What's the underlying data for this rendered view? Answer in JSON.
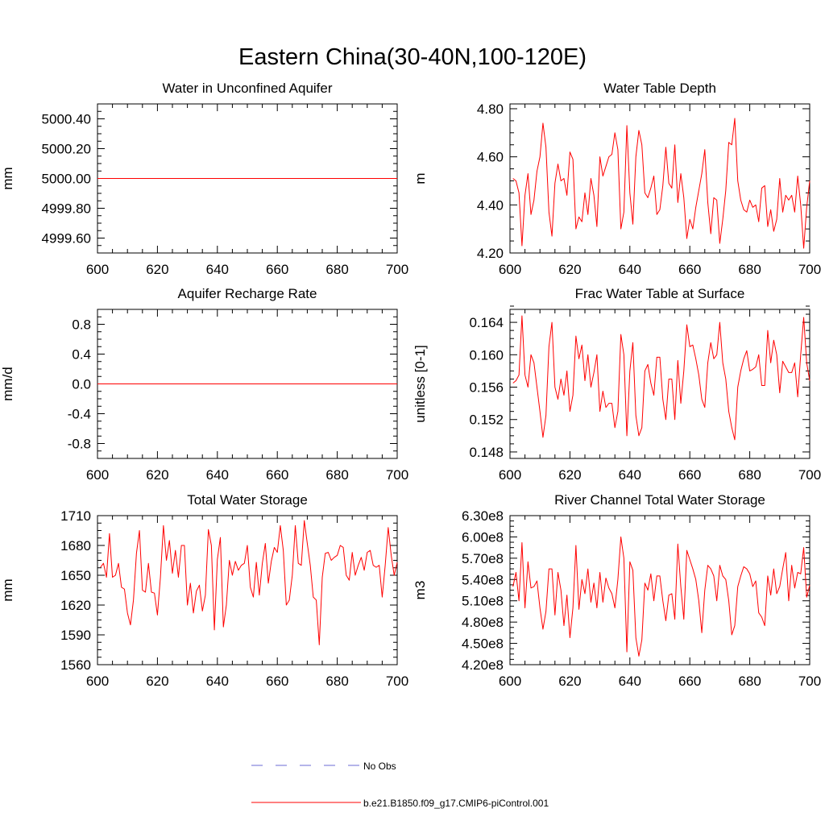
{
  "title": "Eastern China(30-40N,100-120E)",
  "legend": {
    "obs_label": "No Obs",
    "model_label": "b.e21.B1850.f09_g17.CMIP6-piControl.001",
    "colors": {
      "obs": "#6b6bd6",
      "model": "#ff0000"
    }
  },
  "chart_data": [
    {
      "type": "line",
      "title": "Water in Unconfined Aquifer",
      "xlabel": "",
      "ylabel": "mm",
      "xlim": [
        600,
        700
      ],
      "ylim": [
        4999.5,
        5000.5
      ],
      "xticks": [
        600,
        620,
        640,
        660,
        680,
        700
      ],
      "xtick_labels": [
        "600",
        "620",
        "640",
        "660",
        "680",
        "700"
      ],
      "yticks": [
        4999.6,
        4999.8,
        5000.0,
        5000.2,
        5000.4
      ],
      "ytick_labels": [
        "4999.60",
        "4999.80",
        "5000.00",
        "5000.20",
        "5000.40"
      ],
      "x_start": 601,
      "x_step": 1,
      "series": [
        {
          "name": "b.e21.B1850.f09_g17.CMIP6-piControl.001",
          "constant": 5000.0
        }
      ]
    },
    {
      "type": "line",
      "title": "Water Table Depth",
      "xlabel": "",
      "ylabel": "m",
      "xlim": [
        600,
        700
      ],
      "ylim": [
        4.2,
        4.82
      ],
      "xticks": [
        600,
        620,
        640,
        660,
        680,
        700
      ],
      "xtick_labels": [
        "600",
        "620",
        "640",
        "660",
        "680",
        "700"
      ],
      "yticks": [
        4.2,
        4.4,
        4.6,
        4.8
      ],
      "ytick_labels": [
        "4.20",
        "4.40",
        "4.60",
        "4.80"
      ],
      "x_start": 601,
      "x_step": 1,
      "series": [
        {
          "name": "b.e21.B1850.f09_g17.CMIP6-piControl.001",
          "values": [
            4.51,
            4.5,
            4.45,
            4.23,
            4.44,
            4.53,
            4.36,
            4.42,
            4.54,
            4.6,
            4.74,
            4.64,
            4.37,
            4.27,
            4.49,
            4.57,
            4.5,
            4.51,
            4.44,
            4.62,
            4.59,
            4.3,
            4.35,
            4.33,
            4.45,
            4.36,
            4.51,
            4.44,
            4.31,
            4.6,
            4.52,
            4.56,
            4.6,
            4.61,
            4.7,
            4.63,
            4.3,
            4.37,
            4.73,
            4.45,
            4.32,
            4.6,
            4.71,
            4.65,
            4.45,
            4.43,
            4.47,
            4.52,
            4.36,
            4.38,
            4.48,
            4.64,
            4.49,
            4.47,
            4.65,
            4.41,
            4.53,
            4.43,
            4.26,
            4.34,
            4.3,
            4.39,
            4.46,
            4.53,
            4.63,
            4.41,
            4.28,
            4.43,
            4.42,
            4.24,
            4.34,
            4.46,
            4.66,
            4.65,
            4.76,
            4.5,
            4.42,
            4.38,
            4.37,
            4.42,
            4.39,
            4.4,
            4.33,
            4.47,
            4.48,
            4.31,
            4.38,
            4.29,
            4.34,
            4.51,
            4.37,
            4.44,
            4.42,
            4.44,
            4.37,
            4.52,
            4.4,
            4.22,
            4.39,
            4.5
          ]
        }
      ]
    },
    {
      "type": "line",
      "title": "Aquifer Recharge Rate",
      "xlabel": "",
      "ylabel": "mm/d",
      "xlim": [
        600,
        700
      ],
      "ylim": [
        -1.0,
        1.0
      ],
      "xticks": [
        600,
        620,
        640,
        660,
        680,
        700
      ],
      "xtick_labels": [
        "600",
        "620",
        "640",
        "660",
        "680",
        "700"
      ],
      "yticks": [
        -0.8,
        -0.4,
        0.0,
        0.4,
        0.8
      ],
      "ytick_labels": [
        "-0.8",
        "-0.4",
        "0.0",
        "0.4",
        "0.8"
      ],
      "x_start": 601,
      "x_step": 1,
      "series": [
        {
          "name": "b.e21.B1850.f09_g17.CMIP6-piControl.001",
          "constant": 0.0
        }
      ]
    },
    {
      "type": "line",
      "title": "Frac Water Table at Surface",
      "xlabel": "",
      "ylabel": "unitless [0-1]",
      "xlim": [
        600,
        700
      ],
      "ylim": [
        0.1472,
        0.1656
      ],
      "xticks": [
        600,
        620,
        640,
        660,
        680,
        700
      ],
      "xtick_labels": [
        "600",
        "620",
        "640",
        "660",
        "680",
        "700"
      ],
      "yticks": [
        0.148,
        0.152,
        0.156,
        0.16,
        0.164
      ],
      "ytick_labels": [
        "0.148",
        "0.152",
        "0.156",
        "0.160",
        "0.164"
      ],
      "x_start": 601,
      "x_step": 1,
      "series": [
        {
          "name": "b.e21.B1850.f09_g17.CMIP6-piControl.001",
          "values": [
            0.1565,
            0.1568,
            0.1575,
            0.1648,
            0.1575,
            0.156,
            0.16,
            0.159,
            0.156,
            0.153,
            0.1498,
            0.1525,
            0.161,
            0.164,
            0.156,
            0.1545,
            0.157,
            0.155,
            0.158,
            0.153,
            0.155,
            0.1623,
            0.1595,
            0.1612,
            0.1568,
            0.16,
            0.156,
            0.1578,
            0.16,
            0.153,
            0.1555,
            0.1535,
            0.154,
            0.154,
            0.151,
            0.153,
            0.1625,
            0.16,
            0.15,
            0.158,
            0.1615,
            0.1525,
            0.15,
            0.151,
            0.158,
            0.1588,
            0.1565,
            0.155,
            0.1597,
            0.1597,
            0.1545,
            0.152,
            0.157,
            0.157,
            0.152,
            0.1593,
            0.154,
            0.158,
            0.1637,
            0.161,
            0.1612,
            0.1595,
            0.1575,
            0.1545,
            0.1535,
            0.159,
            0.1615,
            0.1595,
            0.16,
            0.164,
            0.159,
            0.157,
            0.153,
            0.151,
            0.1495,
            0.156,
            0.158,
            0.1595,
            0.1605,
            0.158,
            0.1582,
            0.1585,
            0.16,
            0.1562,
            0.1562,
            0.163,
            0.159,
            0.1618,
            0.16,
            0.1553,
            0.1592,
            0.1585,
            0.1578,
            0.1578,
            0.159,
            0.1548,
            0.16,
            0.1646,
            0.159,
            0.1568
          ]
        }
      ]
    },
    {
      "type": "line",
      "title": "Total Water Storage",
      "xlabel": "",
      "ylabel": "mm",
      "xlim": [
        600,
        700
      ],
      "ylim": [
        1560,
        1710
      ],
      "xticks": [
        600,
        620,
        640,
        660,
        680,
        700
      ],
      "xtick_labels": [
        "600",
        "620",
        "640",
        "660",
        "680",
        "700"
      ],
      "yticks": [
        1560,
        1590,
        1620,
        1650,
        1680,
        1710
      ],
      "ytick_labels": [
        "1560",
        "1590",
        "1620",
        "1650",
        "1680",
        "1710"
      ],
      "x_start": 601,
      "x_step": 1,
      "series": [
        {
          "name": "b.e21.B1850.f09_g17.CMIP6-piControl.001",
          "values": [
            1658,
            1662,
            1648,
            1692,
            1648,
            1650,
            1662,
            1638,
            1636,
            1612,
            1600,
            1625,
            1672,
            1695,
            1635,
            1633,
            1662,
            1633,
            1632,
            1610,
            1648,
            1700,
            1665,
            1685,
            1652,
            1675,
            1648,
            1680,
            1680,
            1620,
            1642,
            1612,
            1634,
            1640,
            1614,
            1630,
            1696,
            1680,
            1595,
            1666,
            1688,
            1598,
            1620,
            1665,
            1650,
            1664,
            1655,
            1660,
            1662,
            1680,
            1638,
            1628,
            1663,
            1630,
            1662,
            1682,
            1642,
            1664,
            1678,
            1673,
            1700,
            1675,
            1620,
            1625,
            1650,
            1700,
            1662,
            1660,
            1705,
            1682,
            1660,
            1628,
            1625,
            1580,
            1648,
            1672,
            1673,
            1665,
            1668,
            1670,
            1680,
            1678,
            1650,
            1645,
            1673,
            1650,
            1660,
            1668,
            1655,
            1673,
            1675,
            1660,
            1658,
            1660,
            1628,
            1660,
            1698,
            1670,
            1650,
            1663
          ]
        }
      ]
    },
    {
      "type": "line",
      "title": "River Channel Total Water Storage",
      "xlabel": "",
      "ylabel": "m3",
      "xlim": [
        600,
        700
      ],
      "ylim": [
        420000000,
        630000000
      ],
      "xticks": [
        600,
        620,
        640,
        660,
        680,
        700
      ],
      "xtick_labels": [
        "600",
        "620",
        "640",
        "660",
        "680",
        "700"
      ],
      "yticks": [
        420000000,
        450000000,
        480000000,
        510000000,
        540000000,
        570000000,
        600000000,
        630000000
      ],
      "ytick_labels": [
        "4.20e8",
        "4.50e8",
        "4.80e8",
        "5.10e8",
        "5.40e8",
        "5.70e8",
        "6.00e8",
        "6.30e8"
      ],
      "x_start": 601,
      "x_step": 1,
      "series": [
        {
          "name": "b.e21.B1850.f09_g17.CMIP6-piControl.001",
          "values": [
            530000000,
            550000000,
            510000000,
            592000000,
            500000000,
            565000000,
            528000000,
            530000000,
            538000000,
            500000000,
            470000000,
            495000000,
            555000000,
            555000000,
            490000000,
            550000000,
            525000000,
            475000000,
            518000000,
            458000000,
            500000000,
            588000000,
            498000000,
            540000000,
            520000000,
            555000000,
            508000000,
            535000000,
            500000000,
            550000000,
            508000000,
            542000000,
            528000000,
            520000000,
            500000000,
            540000000,
            600000000,
            570000000,
            438000000,
            565000000,
            553000000,
            458000000,
            432000000,
            455000000,
            535000000,
            525000000,
            548000000,
            510000000,
            545000000,
            545000000,
            510000000,
            482000000,
            518000000,
            520000000,
            484000000,
            590000000,
            530000000,
            484000000,
            581000000,
            568000000,
            555000000,
            540000000,
            510000000,
            465000000,
            525000000,
            560000000,
            555000000,
            545000000,
            510000000,
            560000000,
            545000000,
            540000000,
            510000000,
            462000000,
            475000000,
            530000000,
            545000000,
            558000000,
            555000000,
            548000000,
            530000000,
            538000000,
            493000000,
            487000000,
            475000000,
            545000000,
            518000000,
            555000000,
            520000000,
            530000000,
            555000000,
            578000000,
            510000000,
            560000000,
            528000000,
            550000000,
            548000000,
            585000000,
            515000000,
            532000000
          ]
        }
      ]
    }
  ]
}
